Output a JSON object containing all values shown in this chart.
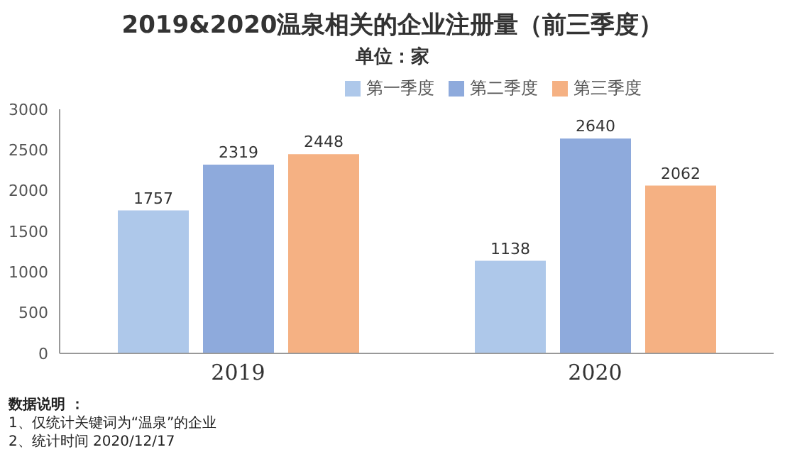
{
  "chart_data": {
    "type": "bar",
    "title": "2019&2020温泉相关的企业注册量（前三季度）",
    "subtitle": "单位：家",
    "categories": [
      "2019",
      "2020"
    ],
    "series": [
      {
        "name": "第一季度",
        "color": "#aec8ea",
        "values": [
          1757,
          1138
        ]
      },
      {
        "name": "第二季度",
        "color": "#8eaadc",
        "values": [
          2319,
          2640
        ]
      },
      {
        "name": "第三季度",
        "color": "#f5b183",
        "values": [
          2448,
          2062
        ]
      }
    ],
    "ylim": [
      0,
      3000
    ],
    "yticks": [
      0,
      500,
      1000,
      1500,
      2000,
      2500,
      3000
    ],
    "grid": false,
    "legend": "top",
    "data_labels": true,
    "annotations": [
      "数据说明 ：",
      "1、仅统计关键词为“温泉”的企业",
      "2、统计时间 2020/12/17"
    ]
  }
}
